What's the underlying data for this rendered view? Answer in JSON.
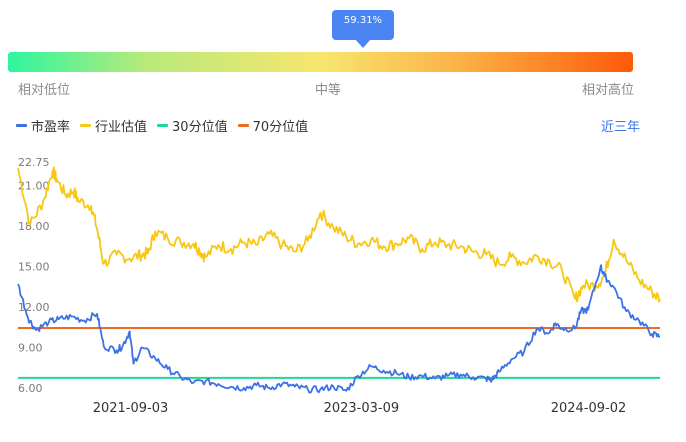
{
  "gauge": {
    "value_label": "59.31%",
    "percentile": 59.31,
    "low_label": "相对低位",
    "mid_label": "中等",
    "high_label": "相对高位"
  },
  "legend": {
    "pe": "市盈率",
    "industry": "行业估值",
    "p30": "30分位值",
    "p70": "70分位值"
  },
  "period_button": "近三年",
  "colors": {
    "pe": "#3d72e6",
    "industry": "#f7c713",
    "p30": "#1fd894",
    "p70": "#ef6a20"
  },
  "chart_data": {
    "type": "line",
    "ylim": [
      6.0,
      22.75
    ],
    "yticks": [
      "22.75",
      "21.00",
      "18.00",
      "15.00",
      "12.00",
      "9.00",
      "6.00"
    ],
    "xticks": [
      "2021-09-03",
      "2023-03-09",
      "2024-09-02"
    ],
    "percentile_30": 6.75,
    "percentile_70": 10.45,
    "series": [
      {
        "key": "industry",
        "x": [
          "2020-12-08",
          "2021-01-06",
          "2021-02-06",
          "2021-03-01",
          "2021-03-10",
          "2021-04-01",
          "2021-04-20",
          "2021-05-01",
          "2021-06-01",
          "2021-06-15",
          "2021-07-01",
          "2021-08-01",
          "2021-09-01",
          "2021-10-01",
          "2021-10-15",
          "2021-11-01",
          "2021-12-01",
          "2022-01-01",
          "2022-02-01",
          "2022-02-15",
          "2022-03-01",
          "2022-04-01",
          "2022-05-01",
          "2022-06-01",
          "2022-07-01",
          "2022-08-01",
          "2022-09-01",
          "2022-10-01",
          "2022-11-01",
          "2022-12-01",
          "2023-01-01",
          "2023-02-01",
          "2023-03-01",
          "2023-04-01",
          "2023-05-01",
          "2023-06-01",
          "2023-07-01",
          "2023-08-01",
          "2023-09-01",
          "2023-10-01",
          "2023-11-01",
          "2023-12-01",
          "2024-01-01",
          "2024-02-01",
          "2024-03-01",
          "2024-04-01",
          "2024-05-01",
          "2024-06-01",
          "2024-07-01",
          "2024-08-01",
          "2024-08-20",
          "2024-09-20",
          "2024-10-10",
          "2024-11-01",
          "2024-12-01",
          "2025-01-01",
          "2025-02-01",
          "2025-02-20"
        ],
        "values": [
          22.3,
          18.1,
          19.8,
          22.1,
          21.5,
          20.3,
          20.6,
          19.9,
          19.5,
          17.8,
          15.2,
          15.9,
          15.6,
          15.9,
          16.0,
          17.6,
          17.1,
          16.8,
          16.7,
          16.2,
          15.7,
          16.6,
          16.3,
          16.8,
          16.6,
          17.4,
          16.6,
          16.1,
          16.9,
          19.0,
          17.9,
          17.2,
          16.7,
          17.0,
          16.5,
          16.7,
          17.1,
          16.3,
          16.8,
          16.6,
          16.5,
          16.1,
          15.9,
          15.2,
          15.7,
          15.3,
          15.8,
          15.4,
          14.7,
          12.6,
          13.6,
          13.6,
          14.3,
          17.0,
          15.5,
          14.0,
          13.1,
          12.6
        ]
      },
      {
        "key": "pe",
        "x": [
          "2020-12-08",
          "2021-01-01",
          "2021-01-20",
          "2021-02-20",
          "2021-03-15",
          "2021-04-15",
          "2021-05-15",
          "2021-06-15",
          "2021-07-01",
          "2021-08-01",
          "2021-08-15",
          "2021-09-01",
          "2021-09-10",
          "2021-10-01",
          "2021-11-01",
          "2021-12-01",
          "2022-01-01",
          "2022-02-01",
          "2022-03-01",
          "2022-04-01",
          "2022-05-01",
          "2022-06-01",
          "2022-07-01",
          "2022-08-01",
          "2022-09-01",
          "2022-10-01",
          "2022-11-01",
          "2022-12-01",
          "2023-01-01",
          "2023-02-01",
          "2023-03-01",
          "2023-04-01",
          "2023-05-01",
          "2023-06-01",
          "2023-07-01",
          "2023-08-01",
          "2023-09-01",
          "2023-10-01",
          "2023-11-01",
          "2023-12-01",
          "2024-01-01",
          "2024-01-15",
          "2024-02-01",
          "2024-03-01",
          "2024-04-01",
          "2024-05-01",
          "2024-06-01",
          "2024-06-15",
          "2024-07-01",
          "2024-08-01",
          "2024-08-15",
          "2024-09-01",
          "2024-10-01",
          "2024-10-10",
          "2024-11-01",
          "2024-12-01",
          "2025-01-01",
          "2025-02-01",
          "2025-02-20"
        ],
        "values": [
          13.7,
          11.2,
          10.3,
          10.9,
          11.1,
          11.3,
          11.0,
          11.5,
          9.1,
          8.8,
          9.1,
          10.2,
          7.8,
          9.0,
          8.2,
          7.4,
          6.8,
          6.4,
          6.5,
          6.3,
          6.1,
          6.0,
          6.2,
          6.0,
          6.3,
          6.1,
          5.9,
          5.9,
          6.1,
          5.8,
          6.9,
          7.6,
          7.3,
          7.1,
          6.8,
          6.9,
          6.7,
          6.9,
          7.0,
          6.8,
          6.7,
          6.6,
          7.2,
          8.1,
          8.7,
          10.4,
          10.1,
          10.8,
          10.4,
          10.4,
          11.7,
          11.8,
          15.0,
          14.3,
          13.5,
          11.7,
          11.0,
          10.0,
          9.8
        ]
      }
    ]
  }
}
